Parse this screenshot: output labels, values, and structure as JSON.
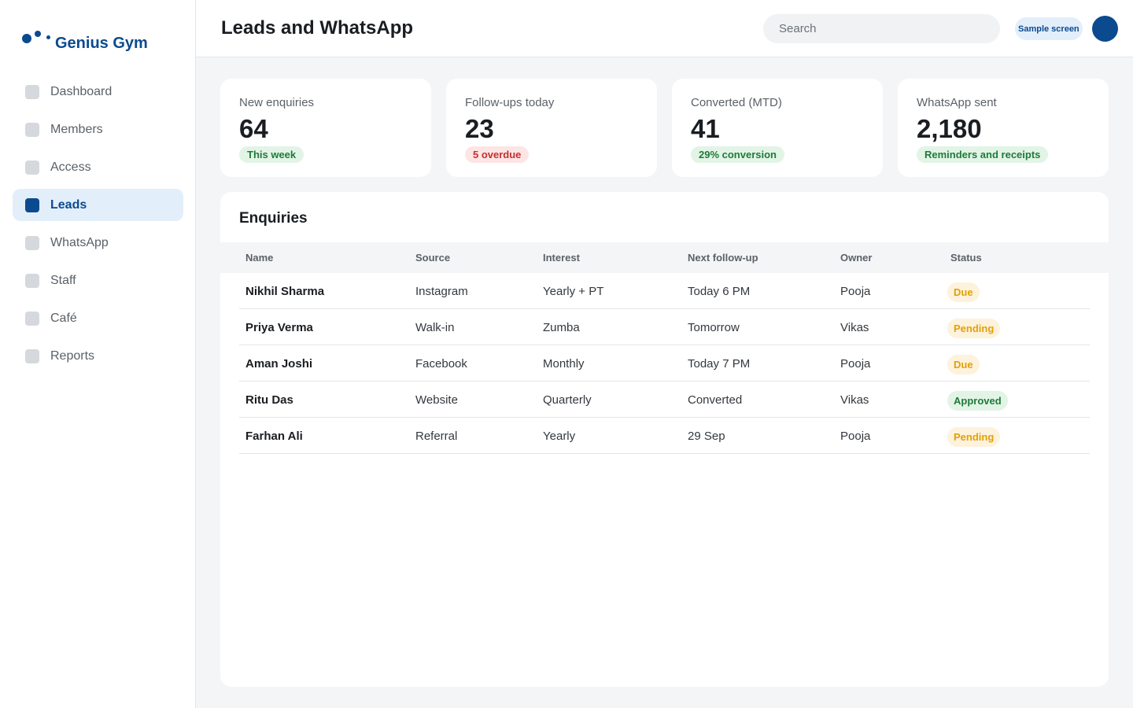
{
  "app": {
    "name": "Genius Gym"
  },
  "sidebar": {
    "items": [
      {
        "label": "Dashboard",
        "active": false
      },
      {
        "label": "Members",
        "active": false
      },
      {
        "label": "Access",
        "active": false
      },
      {
        "label": "Leads",
        "active": true
      },
      {
        "label": "WhatsApp",
        "active": false
      },
      {
        "label": "Staff",
        "active": false
      },
      {
        "label": "Café",
        "active": false
      },
      {
        "label": "Reports",
        "active": false
      }
    ]
  },
  "header": {
    "title": "Leads and WhatsApp",
    "search_placeholder": "Search",
    "badge": "Sample screen"
  },
  "stats": [
    {
      "label": "New enquiries",
      "value": "64",
      "pill": "This week",
      "pill_color": "#1f7a3a"
    },
    {
      "label": "Follow-ups today",
      "value": "23",
      "pill": "5 overdue",
      "pill_color": "#c53030"
    },
    {
      "label": "Converted (MTD)",
      "value": "41",
      "pill": "29% conversion",
      "pill_color": "#1f7a3a"
    },
    {
      "label": "WhatsApp sent",
      "value": "2,180",
      "pill": "Reminders and receipts",
      "pill_color": "#1f7a3a"
    }
  ],
  "enquiries": {
    "title": "Enquiries",
    "columns": [
      "Name",
      "Source",
      "Interest",
      "Next follow-up",
      "Owner",
      "Status"
    ],
    "rows": [
      {
        "name": "Nikhil Sharma",
        "source": "Instagram",
        "interest": "Yearly + PT",
        "next": "Today 6 PM",
        "owner": "Pooja",
        "status": "Due"
      },
      {
        "name": "Priya Verma",
        "source": "Walk-in",
        "interest": "Zumba",
        "next": "Tomorrow",
        "owner": "Vikas",
        "status": "Pending"
      },
      {
        "name": "Aman Joshi",
        "source": "Facebook",
        "interest": "Monthly",
        "next": "Today 7 PM",
        "owner": "Pooja",
        "status": "Due"
      },
      {
        "name": "Ritu Das",
        "source": "Website",
        "interest": "Quarterly",
        "next": "Converted",
        "owner": "Vikas",
        "status": "Approved"
      },
      {
        "name": "Farhan Ali",
        "source": "Referral",
        "interest": "Yearly",
        "next": "29 Sep",
        "owner": "Pooja",
        "status": "Pending"
      }
    ]
  },
  "colors": {
    "brand": "#0b4a8f",
    "status_due": "#e3a008",
    "status_pending": "#e3a008",
    "status_approved": "#1f7a3a"
  },
  "icons": {
    "logo": "dots-logo-icon",
    "nav": "square-nav-icon"
  }
}
